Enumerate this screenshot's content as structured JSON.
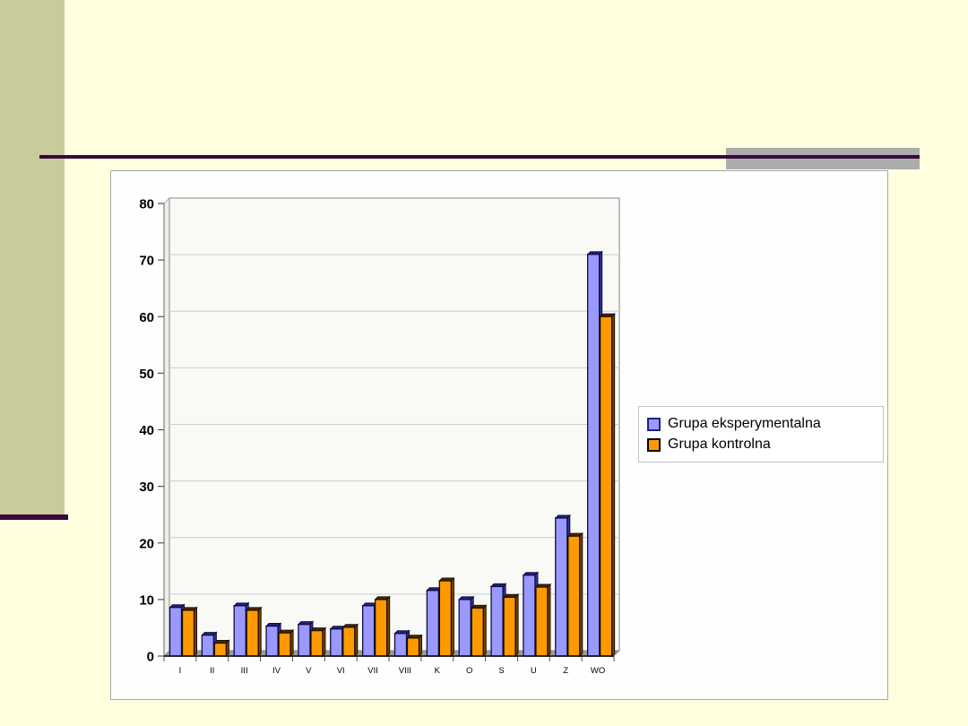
{
  "slide": {
    "background_color": "#FFFFE0",
    "sidebar_color": "#CACB9B",
    "accent_rule_color": "#380839",
    "gray_bar_color": "#ACACAC"
  },
  "chart_data": {
    "type": "bar",
    "style": "column-with-3d-effect",
    "title": "",
    "xlabel": "",
    "ylabel": "",
    "categories": [
      "I",
      "II",
      "III",
      "IV",
      "V",
      "VI",
      "VII",
      "VIII",
      "K",
      "O",
      "S",
      "U",
      "Z",
      "WO"
    ],
    "series": [
      {
        "name": "Grupa eksperymentalna",
        "color": "#9999FF",
        "shade_top": "#23237C",
        "shade_side": "#30309A",
        "outline": "#0D0D42",
        "values": [
          8.6,
          3.7,
          8.9,
          5.3,
          5.6,
          4.8,
          8.9,
          4,
          11.6,
          10,
          12.3,
          14.3,
          24.4,
          71
        ]
      },
      {
        "name": "Grupa kontrolna",
        "color": "#FF9900",
        "shade_top": "#4D2900",
        "shade_side": "#7A4300",
        "outline": "#1A0E00",
        "values": [
          8.1,
          2.3,
          8.1,
          4.1,
          4.5,
          5.1,
          10,
          3.2,
          13.3,
          8.5,
          10.4,
          12.2,
          21.2,
          60
        ]
      }
    ],
    "ylim": [
      0,
      80
    ],
    "yticks": [
      0,
      10,
      20,
      30,
      40,
      50,
      60,
      70,
      80
    ],
    "grid": true,
    "gridline_color": "#CCCCCC",
    "plot_wall_color": "#F9F9F6",
    "plot_floor_color": "#9B9B9B",
    "legend_position": "right-middle"
  }
}
